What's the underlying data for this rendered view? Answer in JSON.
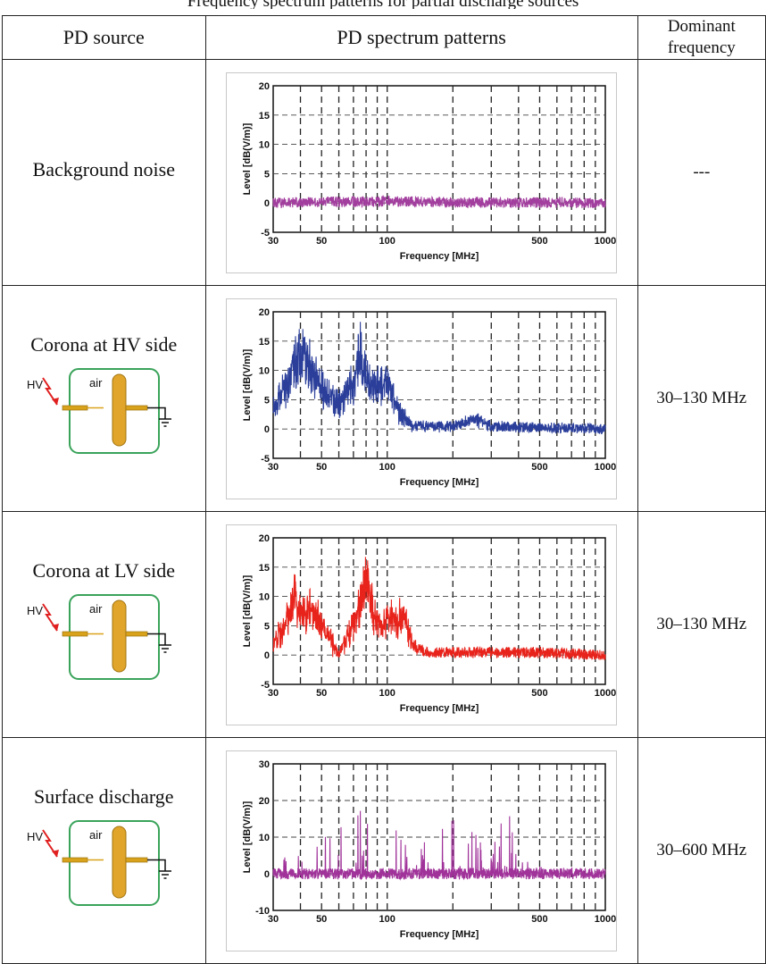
{
  "caption": "Frequency spectrum patterns for partial discharge sources",
  "headers": {
    "source": "PD source",
    "patterns": "PD spectrum patterns",
    "dominant_line1": "Dominant",
    "dominant_line2": "frequency"
  },
  "rows": [
    {
      "source": "Background noise",
      "has_diagram": false,
      "dominant": "---"
    },
    {
      "source": "Corona at HV side",
      "has_diagram": true,
      "dominant": "30–130 MHz"
    },
    {
      "source": "Corona at LV side",
      "has_diagram": true,
      "dominant": "30–130 MHz"
    },
    {
      "source": "Surface discharge",
      "has_diagram": true,
      "dominant": "30–600 MHz"
    }
  ],
  "diagram": {
    "hv_label": "HV",
    "medium_label": "air"
  },
  "chart_data": [
    {
      "type": "line",
      "xlabel": "Frequency [MHz]",
      "ylabel": "Level [dB(V/m)]",
      "xscale": "log",
      "xlim": [
        30,
        1000
      ],
      "ylim": [
        -5,
        20
      ],
      "xticks": [
        30,
        50,
        100,
        500,
        1000
      ],
      "yticks": [
        -5,
        0,
        5,
        10,
        15,
        20
      ],
      "color": "#a23e9e",
      "grid": "dashed",
      "series": [
        {
          "x": [
            30,
            50,
            100,
            200,
            500,
            1000
          ],
          "y": [
            0,
            0.2,
            0.4,
            0.1,
            0.1,
            0.0
          ]
        }
      ]
    },
    {
      "type": "line",
      "xlabel": "Frequency [MHz]",
      "ylabel": "Level [dB(V/m)]",
      "xscale": "log",
      "xlim": [
        30,
        1000
      ],
      "ylim": [
        -5,
        20
      ],
      "xticks": [
        30,
        50,
        100,
        500,
        1000
      ],
      "yticks": [
        -5,
        0,
        5,
        10,
        15,
        20
      ],
      "color": "#2a3e9a",
      "grid": "dashed",
      "series": [
        {
          "x": [
            30,
            35,
            40,
            50,
            60,
            70,
            75,
            80,
            90,
            100,
            110,
            130,
            150,
            200,
            250,
            300,
            500,
            1000
          ],
          "y": [
            4,
            10,
            16,
            8,
            5,
            9,
            16,
            10,
            8,
            10,
            4,
            0.5,
            0.5,
            0.5,
            2,
            0.5,
            0.3,
            0
          ]
        }
      ]
    },
    {
      "type": "line",
      "xlabel": "Frequency [MHz]",
      "ylabel": "Level [dB(V/m)]",
      "xscale": "log",
      "xlim": [
        30,
        1000
      ],
      "ylim": [
        -5,
        20
      ],
      "xticks": [
        30,
        50,
        100,
        500,
        1000
      ],
      "yticks": [
        -5,
        0,
        5,
        10,
        15,
        20
      ],
      "color": "#e8231b",
      "grid": "dashed",
      "series": [
        {
          "x": [
            30,
            35,
            38,
            40,
            45,
            50,
            55,
            60,
            65,
            70,
            75,
            80,
            85,
            90,
            100,
            110,
            120,
            130,
            150,
            200,
            300,
            500,
            1000
          ],
          "y": [
            2,
            7,
            12,
            8,
            9,
            6,
            3,
            0,
            3,
            6,
            10,
            15,
            10,
            6,
            7,
            7,
            8,
            2,
            0.5,
            0.5,
            0.5,
            0.5,
            0
          ]
        }
      ]
    },
    {
      "type": "line",
      "xlabel": "Frequency [MHz]",
      "ylabel": "Level [dB(V/m)]",
      "xscale": "log",
      "xlim": [
        30,
        1000
      ],
      "ylim": [
        -10,
        30
      ],
      "xticks": [
        30,
        50,
        100,
        500,
        1000
      ],
      "yticks": [
        -10,
        0,
        10,
        20,
        30
      ],
      "color": "#a0329a",
      "grid": "dashed",
      "series": [
        {
          "x": [
            30,
            40,
            50,
            60,
            70,
            80,
            90,
            100,
            120,
            150,
            200,
            250,
            300,
            350,
            400,
            500,
            600,
            1000
          ],
          "y": [
            5,
            12,
            10,
            20,
            22,
            18,
            15,
            10,
            12,
            8,
            20,
            10,
            4,
            20,
            3,
            2,
            1,
            0
          ]
        }
      ]
    }
  ]
}
